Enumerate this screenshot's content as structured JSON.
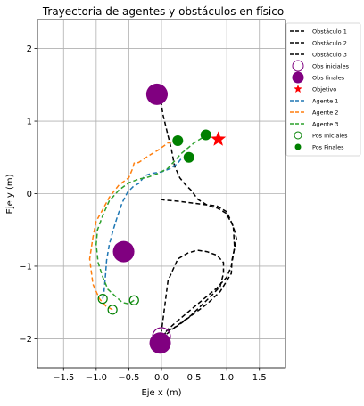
{
  "chart_data": {
    "type": "line",
    "title": "Trayectoria de agentes y obstáculos en físico",
    "xlabel": "Eje x (m)",
    "ylabel": "Eje y (m)",
    "xlim": [
      -1.9,
      1.9
    ],
    "ylim": [
      -2.4,
      2.4
    ],
    "xticks": [
      -1.5,
      -1.0,
      -0.5,
      0.0,
      0.5,
      1.0,
      1.5
    ],
    "xtick_labels": [
      "−1.5",
      "−1.0",
      "−0.5",
      "0.0",
      "0.5",
      "1.0",
      "1.5"
    ],
    "yticks": [
      -2,
      -1,
      0,
      1,
      2
    ],
    "ytick_labels": [
      "−2",
      "−1",
      "0",
      "1",
      "2"
    ],
    "grid": true,
    "legend_position": "outside-right-top",
    "legend": [
      {
        "label": "Obstáculo 1",
        "marker": "dashed-line",
        "color": "#000000"
      },
      {
        "label": "Obstáculo 2",
        "marker": "dashed-line",
        "color": "#000000"
      },
      {
        "label": "Obstáculo 3",
        "marker": "dashed-line",
        "color": "#000000"
      },
      {
        "label": "Obs iniciales",
        "marker": "open-circle",
        "color": "#800080"
      },
      {
        "label": "Obs finales",
        "marker": "filled-circle",
        "color": "#800080"
      },
      {
        "label": "Objetivo",
        "marker": "star",
        "color": "#ff0000"
      },
      {
        "label": "Agente 1",
        "marker": "dashed-line",
        "color": "#1f77b4"
      },
      {
        "label": "Agente 2",
        "marker": "dashed-line",
        "color": "#ff7f0e"
      },
      {
        "label": "Agente 3",
        "marker": "dashed-line",
        "color": "#2ca02c"
      },
      {
        "label": "Pos Iniciales",
        "marker": "open-circle",
        "color": "#008000"
      },
      {
        "label": "Pos Finales",
        "marker": "filled-circle",
        "color": "#008000"
      }
    ],
    "series": [
      {
        "name": "Obstáculo 1",
        "color": "#000000",
        "x": [
          0.0,
          0.15,
          0.3,
          0.45,
          0.6,
          0.75,
          0.9,
          0.95,
          0.95,
          0.85,
          0.7,
          0.55,
          0.4,
          0.25,
          0.1,
          0.0
        ],
        "y": [
          -2.0,
          -1.88,
          -1.78,
          -1.68,
          -1.55,
          -1.42,
          -1.28,
          -1.1,
          -0.95,
          -0.85,
          -0.8,
          -0.78,
          -0.82,
          -0.9,
          -1.2,
          -1.9
        ]
      },
      {
        "name": "Obstáculo 2",
        "color": "#000000",
        "x": [
          0.0,
          0.1,
          0.25,
          0.45,
          0.65,
          0.85,
          1.0,
          1.07,
          1.12,
          1.1,
          1.0,
          0.85,
          0.65,
          0.4,
          0.2,
          0.05,
          0.0
        ],
        "y": [
          -1.98,
          -1.87,
          -1.75,
          -1.6,
          -1.45,
          -1.3,
          -1.15,
          -1.0,
          -0.75,
          -0.45,
          -0.25,
          -0.17,
          -0.15,
          -0.12,
          -0.1,
          -0.09,
          -0.08
        ]
      },
      {
        "name": "Obstáculo 3",
        "color": "#000000",
        "x": [
          -0.02,
          0.02,
          0.1,
          0.15,
          0.2,
          0.28,
          0.36,
          0.45,
          0.56,
          0.72,
          0.86,
          0.99,
          1.1,
          1.15,
          1.08,
          1.07,
          0.9,
          0.7,
          0.55,
          0.4,
          0.25,
          0.12,
          -0.02,
          -0.07,
          -0.08
        ],
        "y": [
          1.38,
          1.1,
          0.8,
          0.62,
          0.38,
          0.22,
          0.13,
          0.05,
          -0.08,
          -0.17,
          -0.2,
          -0.27,
          -0.45,
          -0.62,
          -0.92,
          -1.1,
          -1.35,
          -1.52,
          -1.62,
          -1.72,
          -1.82,
          -1.88,
          -1.98,
          -2.05,
          -2.08
        ]
      },
      {
        "name": "Agente 1",
        "color": "#1f77b4",
        "x": [
          -0.9,
          -0.88,
          -0.86,
          -0.84,
          -0.8,
          -0.74,
          -0.67,
          -0.6,
          -0.52,
          -0.43,
          -0.35,
          -0.25,
          -0.15,
          0.0,
          0.15,
          0.25,
          0.3
        ],
        "y": [
          -1.45,
          -1.35,
          -1.15,
          -0.92,
          -0.7,
          -0.5,
          -0.3,
          -0.12,
          0.02,
          0.1,
          0.14,
          0.25,
          0.28,
          0.3,
          0.35,
          0.42,
          0.48
        ]
      },
      {
        "name": "Agente 2",
        "color": "#ff7f0e",
        "x": [
          -0.75,
          -0.85,
          -0.95,
          -1.05,
          -1.1,
          -1.05,
          -1.0,
          -0.9,
          -0.8,
          -0.65,
          -0.5,
          -0.45,
          -0.42,
          -0.35,
          -0.2,
          -0.05,
          0.1,
          0.2
        ],
        "y": [
          -1.6,
          -1.55,
          -1.45,
          -1.25,
          -0.9,
          -0.6,
          -0.38,
          -0.22,
          -0.05,
          0.12,
          0.22,
          0.33,
          0.42,
          0.43,
          0.52,
          0.6,
          0.7,
          0.72
        ]
      },
      {
        "name": "Agente 3",
        "color": "#2ca02c",
        "x": [
          -0.42,
          -0.5,
          -0.6,
          -0.7,
          -0.82,
          -0.9,
          -0.97,
          -1.0,
          -0.98,
          -0.9,
          -0.8,
          -0.65,
          -0.5,
          -0.35,
          -0.2,
          -0.05,
          0.1,
          0.3,
          0.5,
          0.68
        ],
        "y": [
          -1.47,
          -1.52,
          -1.5,
          -1.42,
          -1.32,
          -1.15,
          -0.95,
          -0.7,
          -0.5,
          -0.3,
          -0.1,
          0.05,
          0.15,
          0.2,
          0.23,
          0.28,
          0.35,
          0.55,
          0.7,
          0.8
        ]
      }
    ],
    "obstacles_initial": [
      {
        "x": -0.05,
        "y": 1.37
      },
      {
        "x": -0.58,
        "y": -0.8
      },
      {
        "x": 0.0,
        "y": -1.97
      }
    ],
    "obstacles_final": [
      {
        "x": -0.07,
        "y": 1.37
      },
      {
        "x": -0.58,
        "y": -0.8
      },
      {
        "x": -0.02,
        "y": -2.06
      }
    ],
    "target": {
      "x": 0.87,
      "y": 0.75
    },
    "agents_initial": [
      {
        "x": -0.9,
        "y": -1.45
      },
      {
        "x": -0.75,
        "y": -1.6
      },
      {
        "x": -0.42,
        "y": -1.47
      }
    ],
    "agents_final": [
      {
        "x": 0.25,
        "y": 0.73
      },
      {
        "x": 0.42,
        "y": 0.5
      },
      {
        "x": 0.68,
        "y": 0.81
      }
    ]
  }
}
